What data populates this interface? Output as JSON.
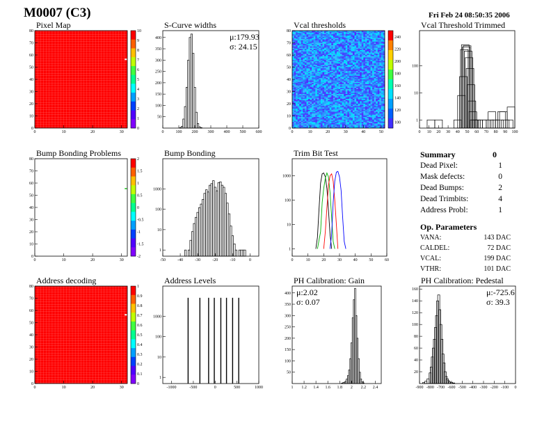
{
  "header": {
    "title": "M0007 (C3)",
    "date": "Fri Feb 24 08:50:35 2006"
  },
  "colors": {
    "frame": "#000000",
    "map_red": "#ff0000",
    "pixel_green": "#4cd24c",
    "series_black": "#000000",
    "series_blue": "#0000ff",
    "series_red": "#ff0000",
    "series_green": "#00b000",
    "vcal_palette": [
      "#ff0000",
      "#ffa500",
      "#ffff00",
      "#80ff00",
      "#00d080",
      "#00e0e0",
      "#30b0ff",
      "#3070ff",
      "#4040ff",
      "#6020ff"
    ]
  },
  "chart_data": [
    {
      "id": "pixel-map",
      "type": "heatmap",
      "title": "Pixel Map",
      "xlim": [
        0,
        32
      ],
      "ylim": [
        0,
        80
      ],
      "xticks": [
        0,
        10,
        20,
        30
      ],
      "yticks": [
        0,
        10,
        20,
        30,
        40,
        50,
        60,
        70,
        80
      ],
      "fill_value": 10,
      "outliers": [
        {
          "col": 35,
          "row": 57,
          "color": "#ffffff"
        }
      ],
      "colorbar": {
        "range": [
          0,
          10
        ],
        "ticks": [
          0,
          1,
          2,
          3,
          4,
          5,
          6,
          7,
          8,
          9,
          10
        ]
      }
    },
    {
      "id": "s-curve-widths",
      "type": "bar",
      "title": "S-Curve widths",
      "xlim": [
        0,
        600
      ],
      "ylim": [
        0,
        430
      ],
      "xticks": [
        0,
        100,
        200,
        300,
        400,
        500,
        600
      ],
      "yticks": [
        50,
        100,
        150,
        200,
        250,
        300,
        350,
        400
      ],
      "x": [
        110,
        120,
        130,
        140,
        150,
        160,
        170,
        180,
        190,
        200,
        210,
        220,
        230,
        240
      ],
      "values": [
        2,
        8,
        40,
        95,
        180,
        300,
        400,
        415,
        330,
        180,
        70,
        20,
        6,
        2
      ],
      "stats": {
        "mean": "μ:179.93",
        "sigma": "σ: 24.15"
      }
    },
    {
      "id": "vcal-thresholds",
      "type": "heatmap",
      "title": "Vcal thresholds",
      "xlim": [
        0,
        52
      ],
      "ylim": [
        0,
        80
      ],
      "xticks": [
        0,
        10,
        20,
        30,
        40,
        50
      ],
      "yticks": [
        0,
        10,
        20,
        30,
        40,
        50,
        60,
        70,
        80
      ],
      "mean_level": 140,
      "colorbar": {
        "range": [
          90,
          250
        ],
        "ticks": [
          100,
          120,
          140,
          160,
          180,
          200,
          220,
          240
        ]
      }
    },
    {
      "id": "vcal-threshold-trimmed",
      "type": "bar",
      "title": "Vcal Threshold Trimmed",
      "xlim": [
        0,
        100
      ],
      "ylim": [
        0.5,
        2000
      ],
      "log_y": true,
      "xticks": [
        0,
        10,
        20,
        30,
        40,
        50,
        60,
        70,
        80,
        90,
        100
      ],
      "yticks": [
        1,
        10,
        100
      ],
      "x": [
        12,
        20,
        40,
        44,
        46,
        47,
        48,
        49,
        50,
        51,
        52,
        53,
        54,
        55,
        56,
        57,
        58,
        60,
        62,
        66,
        70,
        74,
        76,
        78,
        80,
        84,
        86,
        88,
        90,
        94,
        96
      ],
      "values": [
        1,
        1,
        1,
        8,
        40,
        400,
        600,
        500,
        550,
        350,
        200,
        80,
        20,
        5,
        2,
        1,
        1,
        1,
        1,
        1,
        1,
        1,
        2,
        1,
        1,
        1,
        2,
        2,
        1,
        1,
        3
      ]
    },
    {
      "id": "bump-bonding-problems",
      "type": "heatmap",
      "title": "Bump Bonding Problems",
      "xlim": [
        0,
        32
      ],
      "ylim": [
        0,
        80
      ],
      "xticks": [
        0,
        10,
        20,
        30
      ],
      "yticks": [
        0,
        10,
        20,
        30,
        40,
        50,
        60,
        70,
        80
      ],
      "outliers": [
        {
          "col": 35,
          "row": 56,
          "color": "#4cd24c"
        }
      ],
      "colorbar": {
        "range": [
          -2,
          2
        ],
        "ticks": [
          2,
          1.5,
          1,
          0.5,
          0,
          -0.5,
          -1,
          -1.5,
          -2
        ]
      }
    },
    {
      "id": "bump-bonding",
      "type": "bar",
      "title": "Bump Bonding",
      "xlim": [
        -50,
        5
      ],
      "ylim": [
        0.5,
        30000
      ],
      "log_y": true,
      "xticks": [
        -50,
        -40,
        -30,
        -20,
        -10,
        0
      ],
      "yticks": [
        1,
        10,
        100,
        1000
      ],
      "x": [
        -37,
        -36,
        -35,
        -34,
        -33,
        -32,
        -31,
        -30,
        -29,
        -28,
        -27,
        -26,
        -25,
        -24,
        -23,
        -22,
        -21,
        -20,
        -19,
        -18,
        -17,
        -16,
        -15,
        -14,
        -13,
        -12,
        -11,
        -10,
        -9,
        -8,
        -7,
        -6,
        -5,
        -4,
        -3
      ],
      "values": [
        1,
        0.5,
        1,
        3,
        8,
        20,
        40,
        70,
        120,
        180,
        300,
        600,
        900,
        700,
        1500,
        1800,
        2500,
        1200,
        800,
        2000,
        2200,
        1500,
        1200,
        600,
        200,
        60,
        15,
        5,
        2,
        1,
        0.5,
        1,
        1,
        1,
        1
      ]
    },
    {
      "id": "trim-bit-test",
      "type": "line",
      "title": "Trim Bit Test",
      "xlim": [
        0,
        60
      ],
      "ylim": [
        0.5,
        5000
      ],
      "log_y": true,
      "xticks": [
        0,
        10,
        20,
        30,
        40,
        50,
        60
      ],
      "yticks": [
        1,
        10,
        100,
        1000
      ],
      "series": [
        {
          "color": "#000000",
          "points": [
            [
              15,
              1
            ],
            [
              16,
              3
            ],
            [
              17,
              40
            ],
            [
              18,
              500
            ],
            [
              19,
              1200
            ],
            [
              20,
              1300
            ],
            [
              21,
              900
            ],
            [
              22,
              300
            ],
            [
              23,
              40
            ],
            [
              24,
              4
            ],
            [
              25,
              1
            ]
          ]
        },
        {
          "color": "#00b000",
          "points": [
            [
              16,
              1
            ],
            [
              18,
              5
            ],
            [
              19,
              80
            ],
            [
              20,
              300
            ],
            [
              21,
              800
            ],
            [
              22,
              1300
            ],
            [
              23,
              900
            ],
            [
              24,
              200
            ],
            [
              25,
              20
            ],
            [
              26,
              2
            ],
            [
              27,
              1
            ]
          ]
        },
        {
          "color": "#ff0000",
          "points": [
            [
              20,
              1
            ],
            [
              21,
              5
            ],
            [
              22,
              50
            ],
            [
              23,
              400
            ],
            [
              24,
              1000
            ],
            [
              25,
              1200
            ],
            [
              26,
              600
            ],
            [
              27,
              100
            ],
            [
              28,
              10
            ],
            [
              29,
              1
            ]
          ]
        },
        {
          "color": "#0000ff",
          "points": [
            [
              24,
              1
            ],
            [
              25,
              4
            ],
            [
              26,
              80
            ],
            [
              27,
              600
            ],
            [
              28,
              1400
            ],
            [
              29,
              1500
            ],
            [
              30,
              900
            ],
            [
              31,
              250
            ],
            [
              32,
              20
            ],
            [
              33,
              2
            ],
            [
              34,
              1
            ]
          ]
        }
      ]
    },
    {
      "id": "address-decoding",
      "type": "heatmap",
      "title": "Address decoding",
      "xlim": [
        0,
        32
      ],
      "ylim": [
        0,
        80
      ],
      "xticks": [
        0,
        10,
        20,
        30
      ],
      "yticks": [
        0,
        10,
        20,
        30,
        40,
        50,
        60,
        70,
        80
      ],
      "fill_value": 1,
      "outliers": [
        {
          "col": 35,
          "row": 57,
          "color": "#ffffff"
        }
      ],
      "colorbar": {
        "range": [
          0,
          1
        ],
        "ticks": [
          0,
          0.1,
          0.2,
          0.3,
          0.4,
          0.5,
          0.6,
          0.7,
          0.8,
          0.9,
          1
        ]
      }
    },
    {
      "id": "address-levels",
      "type": "bar",
      "title": "Address Levels",
      "xlim": [
        -1200,
        1000
      ],
      "ylim": [
        0.5,
        30000
      ],
      "log_y": true,
      "xticks": [
        -1000,
        -500,
        0,
        500,
        1000
      ],
      "yticks": [
        1,
        10,
        100,
        1000
      ],
      "x": [
        -620,
        -350,
        -150,
        -20,
        130,
        260,
        400,
        540
      ],
      "values": [
        8000,
        8000,
        8000,
        8000,
        8000,
        8000,
        8000,
        8000
      ]
    },
    {
      "id": "ph-calibration-gain",
      "type": "bar",
      "title": "PH Calibration: Gain",
      "xlim": [
        1,
        2.5
      ],
      "ylim": [
        0,
        430
      ],
      "xticks": [
        1,
        1.2,
        1.4,
        1.6,
        1.8,
        2,
        2.2,
        2.4
      ],
      "yticks": [
        50,
        100,
        150,
        200,
        250,
        300,
        350,
        400
      ],
      "x": [
        1.84,
        1.86,
        1.88,
        1.9,
        1.92,
        1.94,
        1.96,
        1.98,
        2.0,
        2.02,
        2.04,
        2.06,
        2.08,
        2.1,
        2.12,
        2.14,
        2.16,
        2.18,
        2.2
      ],
      "values": [
        2,
        4,
        6,
        10,
        20,
        35,
        60,
        110,
        180,
        290,
        370,
        420,
        300,
        200,
        110,
        50,
        20,
        8,
        3
      ],
      "stats": {
        "mean": "μ:2.02",
        "sigma": "σ: 0.07"
      }
    },
    {
      "id": "ph-calibration-pedestal",
      "type": "bar",
      "title": "PH Calibration: Pedestal",
      "xlim": [
        -900,
        0
      ],
      "ylim": [
        0,
        165
      ],
      "xticks": [
        -900,
        -800,
        -700,
        -600,
        -500,
        -400,
        -300,
        -200,
        -100,
        0
      ],
      "yticks": [
        20,
        40,
        60,
        80,
        100,
        120,
        140,
        160
      ],
      "x": [
        -860,
        -840,
        -820,
        -800,
        -790,
        -780,
        -770,
        -760,
        -750,
        -740,
        -730,
        -720,
        -710,
        -700,
        -690,
        -680,
        -670,
        -660,
        -650,
        -640,
        -630,
        -620,
        -600,
        -580
      ],
      "values": [
        2,
        4,
        8,
        18,
        28,
        45,
        60,
        75,
        95,
        115,
        140,
        150,
        125,
        100,
        75,
        50,
        35,
        20,
        12,
        8,
        5,
        3,
        2,
        1
      ],
      "stats": {
        "mean": "μ:-725.6",
        "sigma": "σ: 39.3"
      }
    }
  ],
  "summary": {
    "title": "Summary",
    "title_value": "0",
    "rows": [
      {
        "label": "Dead Pixel:",
        "value": "1"
      },
      {
        "label": "Mask defects:",
        "value": "0"
      },
      {
        "label": "Dead Bumps:",
        "value": "2"
      },
      {
        "label": "Dead Trimbits:",
        "value": "4"
      },
      {
        "label": "Address Probl:",
        "value": "1"
      }
    ],
    "op_title": "Op. Parameters",
    "op_rows": [
      {
        "label": "VANA:",
        "value": "143 DAC"
      },
      {
        "label": "CALDEL:",
        "value": "72 DAC"
      },
      {
        "label": "VCAL:",
        "value": "199 DAC"
      },
      {
        "label": "VTHR:",
        "value": "101 DAC"
      }
    ]
  }
}
